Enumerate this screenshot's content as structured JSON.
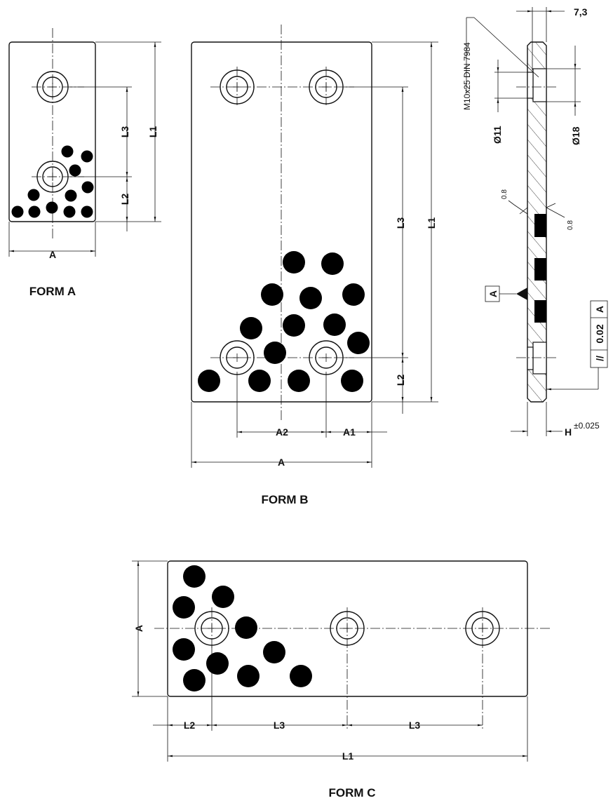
{
  "form_a": {
    "title": "FORM A",
    "dims": {
      "L1": "L1",
      "L2": "L2",
      "L3": "L3",
      "A": "A"
    }
  },
  "form_b": {
    "title": "FORM B",
    "dims": {
      "L1": "L1",
      "L2": "L2",
      "L3": "L3",
      "A": "A",
      "A1": "A1",
      "A2": "A2"
    }
  },
  "form_c": {
    "title": "FORM C",
    "dims": {
      "L1": "L1",
      "L2": "L2",
      "L3": "L3",
      "A": "A"
    }
  },
  "side_view": {
    "screw": "M10x25 DIN 7984",
    "dia_small": "Ø11",
    "dia_large": "Ø18",
    "offset": "7,3",
    "roughness_left": "0.8",
    "roughness_right": "0.8",
    "datum": "A",
    "tolerance_symbol": "//",
    "tolerance_value": "0.02",
    "tolerance_datum": "A",
    "thickness": "H",
    "thickness_tol": "±0.025"
  }
}
